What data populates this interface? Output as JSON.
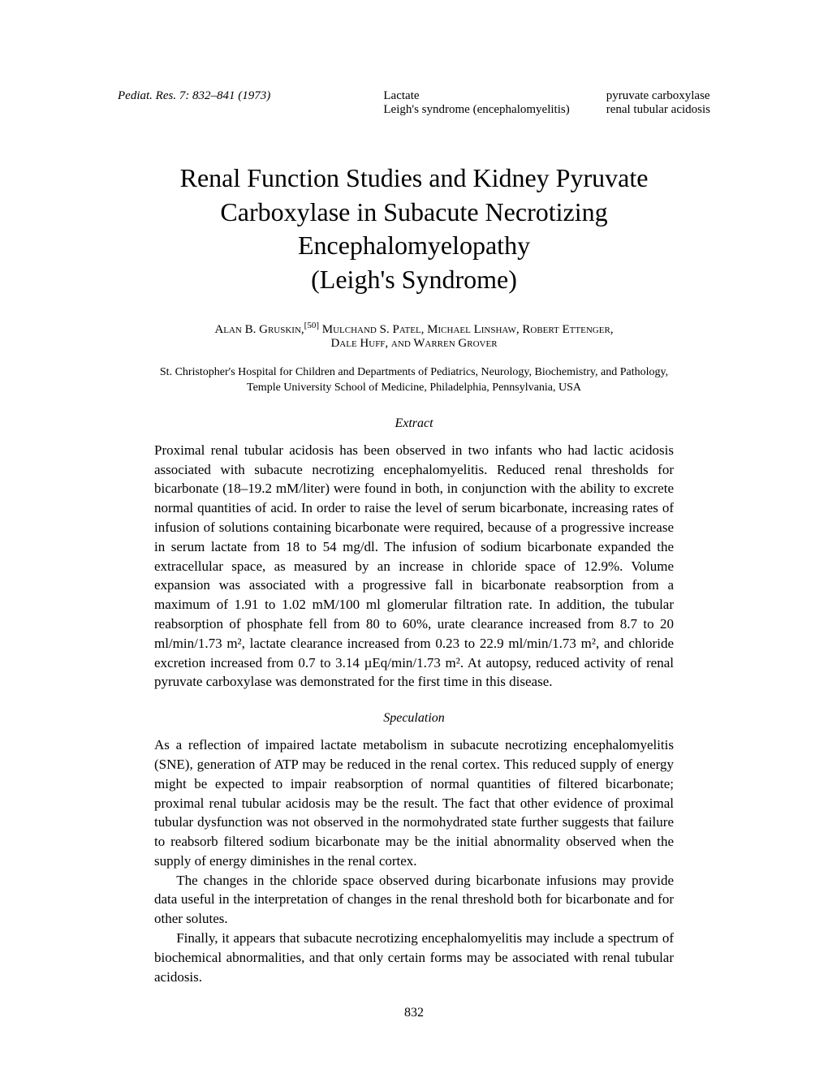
{
  "header": {
    "citation": "Pediat. Res. 7: 832–841 (1973)",
    "keywords_col1_line1": "Lactate",
    "keywords_col1_line2": "Leigh's syndrome (encephalomyelitis)",
    "keywords_col2_line1": "pyruvate carboxylase",
    "keywords_col2_line2": "renal tubular acidosis"
  },
  "title": {
    "line1": "Renal Function Studies and Kidney Pyruvate",
    "line2": "Carboxylase in Subacute Necrotizing",
    "line3": "Encephalomyelopathy",
    "line4": "(Leigh's Syndrome)"
  },
  "authors": {
    "line1_pre": "Alan B. Gruskin,",
    "line1_sup": "[50]",
    "line1_post": " Mulchand S. Patel, Michael Linshaw, Robert Ettenger,",
    "line2": "Dale Huff, and Warren Grover"
  },
  "affiliation": {
    "line1": "St. Christopher's Hospital for Children and Departments of Pediatrics, Neurology, Biochemistry, and Pathology,",
    "line2": "Temple University School of Medicine, Philadelphia, Pennsylvania, USA"
  },
  "extract": {
    "label": "Extract",
    "text": "Proximal renal tubular acidosis has been observed in two infants who had lactic acidosis associated with subacute necrotizing encephalomyelitis. Reduced renal thresholds for bicarbonate (18–19.2 mM/liter) were found in both, in conjunction with the ability to excrete normal quantities of acid. In order to raise the level of serum bicarbonate, increasing rates of infusion of solutions containing bicarbonate were required, because of a progressive increase in serum lactate from 18 to 54 mg/dl. The infusion of sodium bicarbonate expanded the extracellular space, as measured by an increase in chloride space of 12.9%. Volume expansion was associated with a progressive fall in bicarbonate reabsorption from a maximum of 1.91 to 1.02 mM/100 ml glomerular filtration rate. In addition, the tubular reabsorption of phosphate fell from 80 to 60%, urate clearance increased from 8.7 to 20 ml/min/1.73 m², lactate clearance increased from 0.23 to 22.9 ml/min/1.73 m², and chloride excretion increased from 0.7 to 3.14 µEq/min/1.73 m². At autopsy, reduced activity of renal pyruvate carboxylase was demonstrated for the first time in this disease."
  },
  "speculation": {
    "label": "Speculation",
    "p1": "As a reflection of impaired lactate metabolism in subacute necrotizing encephalomyelitis (SNE), generation of ATP may be reduced in the renal cortex. This reduced supply of energy might be expected to impair reabsorption of normal quantities of filtered bicarbonate; proximal renal tubular acidosis may be the result. The fact that other evidence of proximal tubular dysfunction was not observed in the normohydrated state further suggests that failure to reabsorb filtered sodium bicarbonate may be the initial abnormality observed when the supply of energy diminishes in the renal cortex.",
    "p2": "The changes in the chloride space observed during bicarbonate infusions may provide data useful in the interpretation of changes in the renal threshold both for bicarbonate and for other solutes.",
    "p3": "Finally, it appears that subacute necrotizing encephalomyelitis may include a spectrum of biochemical abnormalities, and that only certain forms may be associated with renal tubular acidosis."
  },
  "page_number": "832"
}
